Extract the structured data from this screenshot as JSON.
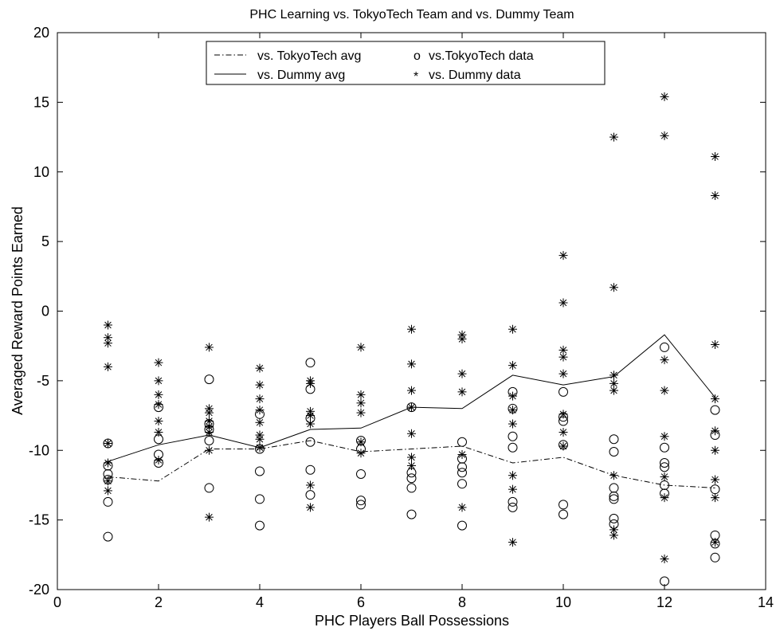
{
  "chart_data": {
    "type": "scatter",
    "title": "PHC Learning vs. TokyoTech Team and vs. Dummy Team",
    "xlabel": "PHC Players Ball Possessions",
    "ylabel": "Averaged Reward Points Earned",
    "xlim": [
      0,
      14
    ],
    "ylim": [
      -20,
      20
    ],
    "xticks": [
      0,
      2,
      4,
      6,
      8,
      10,
      12,
      14
    ],
    "yticks": [
      -20,
      -15,
      -10,
      -5,
      0,
      5,
      10,
      15,
      20
    ],
    "grid": false,
    "legend_position": "top-center",
    "series": [
      {
        "name": "vs. TokyoTech avg",
        "kind": "line",
        "style": "dashdot",
        "x": [
          1,
          2,
          3,
          4,
          5,
          6,
          7,
          8,
          9,
          10,
          11,
          12,
          13
        ],
        "y": [
          -11.9,
          -12.2,
          -9.9,
          -9.9,
          -9.3,
          -10.1,
          -9.9,
          -9.7,
          -10.9,
          -10.5,
          -11.8,
          -12.5,
          -12.7
        ]
      },
      {
        "name": "vs.TokyoTech data",
        "legend_marker": "o",
        "kind": "points",
        "marker": "circle",
        "points": [
          [
            1,
            -9.5
          ],
          [
            1,
            -11.1
          ],
          [
            1,
            -11.7
          ],
          [
            1,
            -12.1
          ],
          [
            1,
            -13.7
          ],
          [
            1,
            -16.2
          ],
          [
            2,
            -6.9
          ],
          [
            2,
            -9.2
          ],
          [
            2,
            -10.3
          ],
          [
            2,
            -10.9
          ],
          [
            3,
            -4.9
          ],
          [
            3,
            -8.1
          ],
          [
            3,
            -8.5
          ],
          [
            3,
            -9.3
          ],
          [
            3,
            -12.7
          ],
          [
            4,
            -7.4
          ],
          [
            4,
            -9.9
          ],
          [
            4,
            -11.5
          ],
          [
            4,
            -13.5
          ],
          [
            4,
            -15.4
          ],
          [
            5,
            -3.7
          ],
          [
            5,
            -5.6
          ],
          [
            5,
            -7.7
          ],
          [
            5,
            -9.4
          ],
          [
            5,
            -11.4
          ],
          [
            5,
            -13.2
          ],
          [
            6,
            -9.3
          ],
          [
            6,
            -9.9
          ],
          [
            6,
            -11.7
          ],
          [
            6,
            -13.6
          ],
          [
            6,
            -13.9
          ],
          [
            7,
            -6.9
          ],
          [
            7,
            -11.6
          ],
          [
            7,
            -12.0
          ],
          [
            7,
            -12.7
          ],
          [
            7,
            -14.6
          ],
          [
            8,
            -9.4
          ],
          [
            8,
            -10.6
          ],
          [
            8,
            -11.2
          ],
          [
            8,
            -11.6
          ],
          [
            8,
            -12.4
          ],
          [
            8,
            -15.4
          ],
          [
            9,
            -5.8
          ],
          [
            9,
            -7.0
          ],
          [
            9,
            -9.0
          ],
          [
            9,
            -9.8
          ],
          [
            9,
            -13.7
          ],
          [
            9,
            -14.1
          ],
          [
            10,
            -5.8
          ],
          [
            10,
            -7.6
          ],
          [
            10,
            -7.9
          ],
          [
            10,
            -9.6
          ],
          [
            10,
            -13.9
          ],
          [
            10,
            -14.6
          ],
          [
            11,
            -9.2
          ],
          [
            11,
            -10.1
          ],
          [
            11,
            -12.7
          ],
          [
            11,
            -13.3
          ],
          [
            11,
            -13.5
          ],
          [
            11,
            -14.9
          ],
          [
            11,
            -15.3
          ],
          [
            12,
            -2.6
          ],
          [
            12,
            -9.8
          ],
          [
            12,
            -10.9
          ],
          [
            12,
            -11.2
          ],
          [
            12,
            -12.5
          ],
          [
            12,
            -13.1
          ],
          [
            12,
            -19.4
          ],
          [
            13,
            -7.1
          ],
          [
            13,
            -8.9
          ],
          [
            13,
            -12.8
          ],
          [
            13,
            -16.1
          ],
          [
            13,
            -16.7
          ],
          [
            13,
            -17.7
          ]
        ]
      },
      {
        "name": "vs. Dummy avg",
        "kind": "line",
        "style": "solid",
        "x": [
          1,
          2,
          3,
          4,
          5,
          6,
          7,
          8,
          9,
          10,
          11,
          12,
          13
        ],
        "y": [
          -10.8,
          -9.6,
          -8.9,
          -9.8,
          -8.5,
          -8.4,
          -6.9,
          -7.0,
          -4.6,
          -5.3,
          -4.7,
          -1.7,
          -6.2
        ]
      },
      {
        "name": "vs. Dummy data",
        "legend_marker": "*",
        "kind": "points",
        "marker": "asterisk",
        "points": [
          [
            1,
            -1.0
          ],
          [
            1,
            -1.9
          ],
          [
            1,
            -2.3
          ],
          [
            1,
            -4.0
          ],
          [
            1,
            -9.5
          ],
          [
            1,
            -10.9
          ],
          [
            1,
            -12.2
          ],
          [
            1,
            -12.9
          ],
          [
            2,
            -3.7
          ],
          [
            2,
            -5.0
          ],
          [
            2,
            -6.0
          ],
          [
            2,
            -6.7
          ],
          [
            2,
            -7.9
          ],
          [
            2,
            -8.7
          ],
          [
            2,
            -10.7
          ],
          [
            3,
            -2.6
          ],
          [
            3,
            -7.0
          ],
          [
            3,
            -7.3
          ],
          [
            3,
            -7.9
          ],
          [
            3,
            -8.3
          ],
          [
            3,
            -8.7
          ],
          [
            3,
            -10.0
          ],
          [
            3,
            -14.8
          ],
          [
            4,
            -4.1
          ],
          [
            4,
            -5.3
          ],
          [
            4,
            -6.3
          ],
          [
            4,
            -7.1
          ],
          [
            4,
            -8.0
          ],
          [
            4,
            -8.9
          ],
          [
            4,
            -9.2
          ],
          [
            4,
            -9.8
          ],
          [
            5,
            -5.0
          ],
          [
            5,
            -5.2
          ],
          [
            5,
            -7.2
          ],
          [
            5,
            -7.5
          ],
          [
            5,
            -8.1
          ],
          [
            5,
            -12.5
          ],
          [
            5,
            -14.1
          ],
          [
            6,
            -2.6
          ],
          [
            6,
            -6.0
          ],
          [
            6,
            -6.6
          ],
          [
            6,
            -7.3
          ],
          [
            6,
            -9.4
          ],
          [
            6,
            -10.2
          ],
          [
            7,
            -1.3
          ],
          [
            7,
            -3.8
          ],
          [
            7,
            -5.7
          ],
          [
            7,
            -6.9
          ],
          [
            7,
            -8.8
          ],
          [
            7,
            -10.5
          ],
          [
            7,
            -11.1
          ],
          [
            8,
            -1.7
          ],
          [
            8,
            -2.0
          ],
          [
            8,
            -4.5
          ],
          [
            8,
            -5.8
          ],
          [
            8,
            -10.3
          ],
          [
            8,
            -14.1
          ],
          [
            9,
            -1.3
          ],
          [
            9,
            -3.9
          ],
          [
            9,
            -6.1
          ],
          [
            9,
            -7.1
          ],
          [
            9,
            -8.1
          ],
          [
            9,
            -11.8
          ],
          [
            9,
            -12.8
          ],
          [
            9,
            -16.6
          ],
          [
            10,
            4.0
          ],
          [
            10,
            0.6
          ],
          [
            10,
            -2.8
          ],
          [
            10,
            -3.3
          ],
          [
            10,
            -4.5
          ],
          [
            10,
            -7.4
          ],
          [
            10,
            -8.7
          ],
          [
            10,
            -9.7
          ],
          [
            11,
            12.5
          ],
          [
            11,
            1.7
          ],
          [
            11,
            -4.6
          ],
          [
            11,
            -5.2
          ],
          [
            11,
            -5.7
          ],
          [
            11,
            -11.8
          ],
          [
            11,
            -15.7
          ],
          [
            11,
            -16.1
          ],
          [
            12,
            15.4
          ],
          [
            12,
            12.6
          ],
          [
            12,
            -3.5
          ],
          [
            12,
            -5.7
          ],
          [
            12,
            -9.0
          ],
          [
            12,
            -11.9
          ],
          [
            12,
            -13.4
          ],
          [
            12,
            -17.8
          ],
          [
            13,
            11.1
          ],
          [
            13,
            8.3
          ],
          [
            13,
            -2.4
          ],
          [
            13,
            -6.3
          ],
          [
            13,
            -8.6
          ],
          [
            13,
            -10.0
          ],
          [
            13,
            -12.1
          ],
          [
            13,
            -13.4
          ],
          [
            13,
            -16.6
          ]
        ]
      }
    ]
  }
}
